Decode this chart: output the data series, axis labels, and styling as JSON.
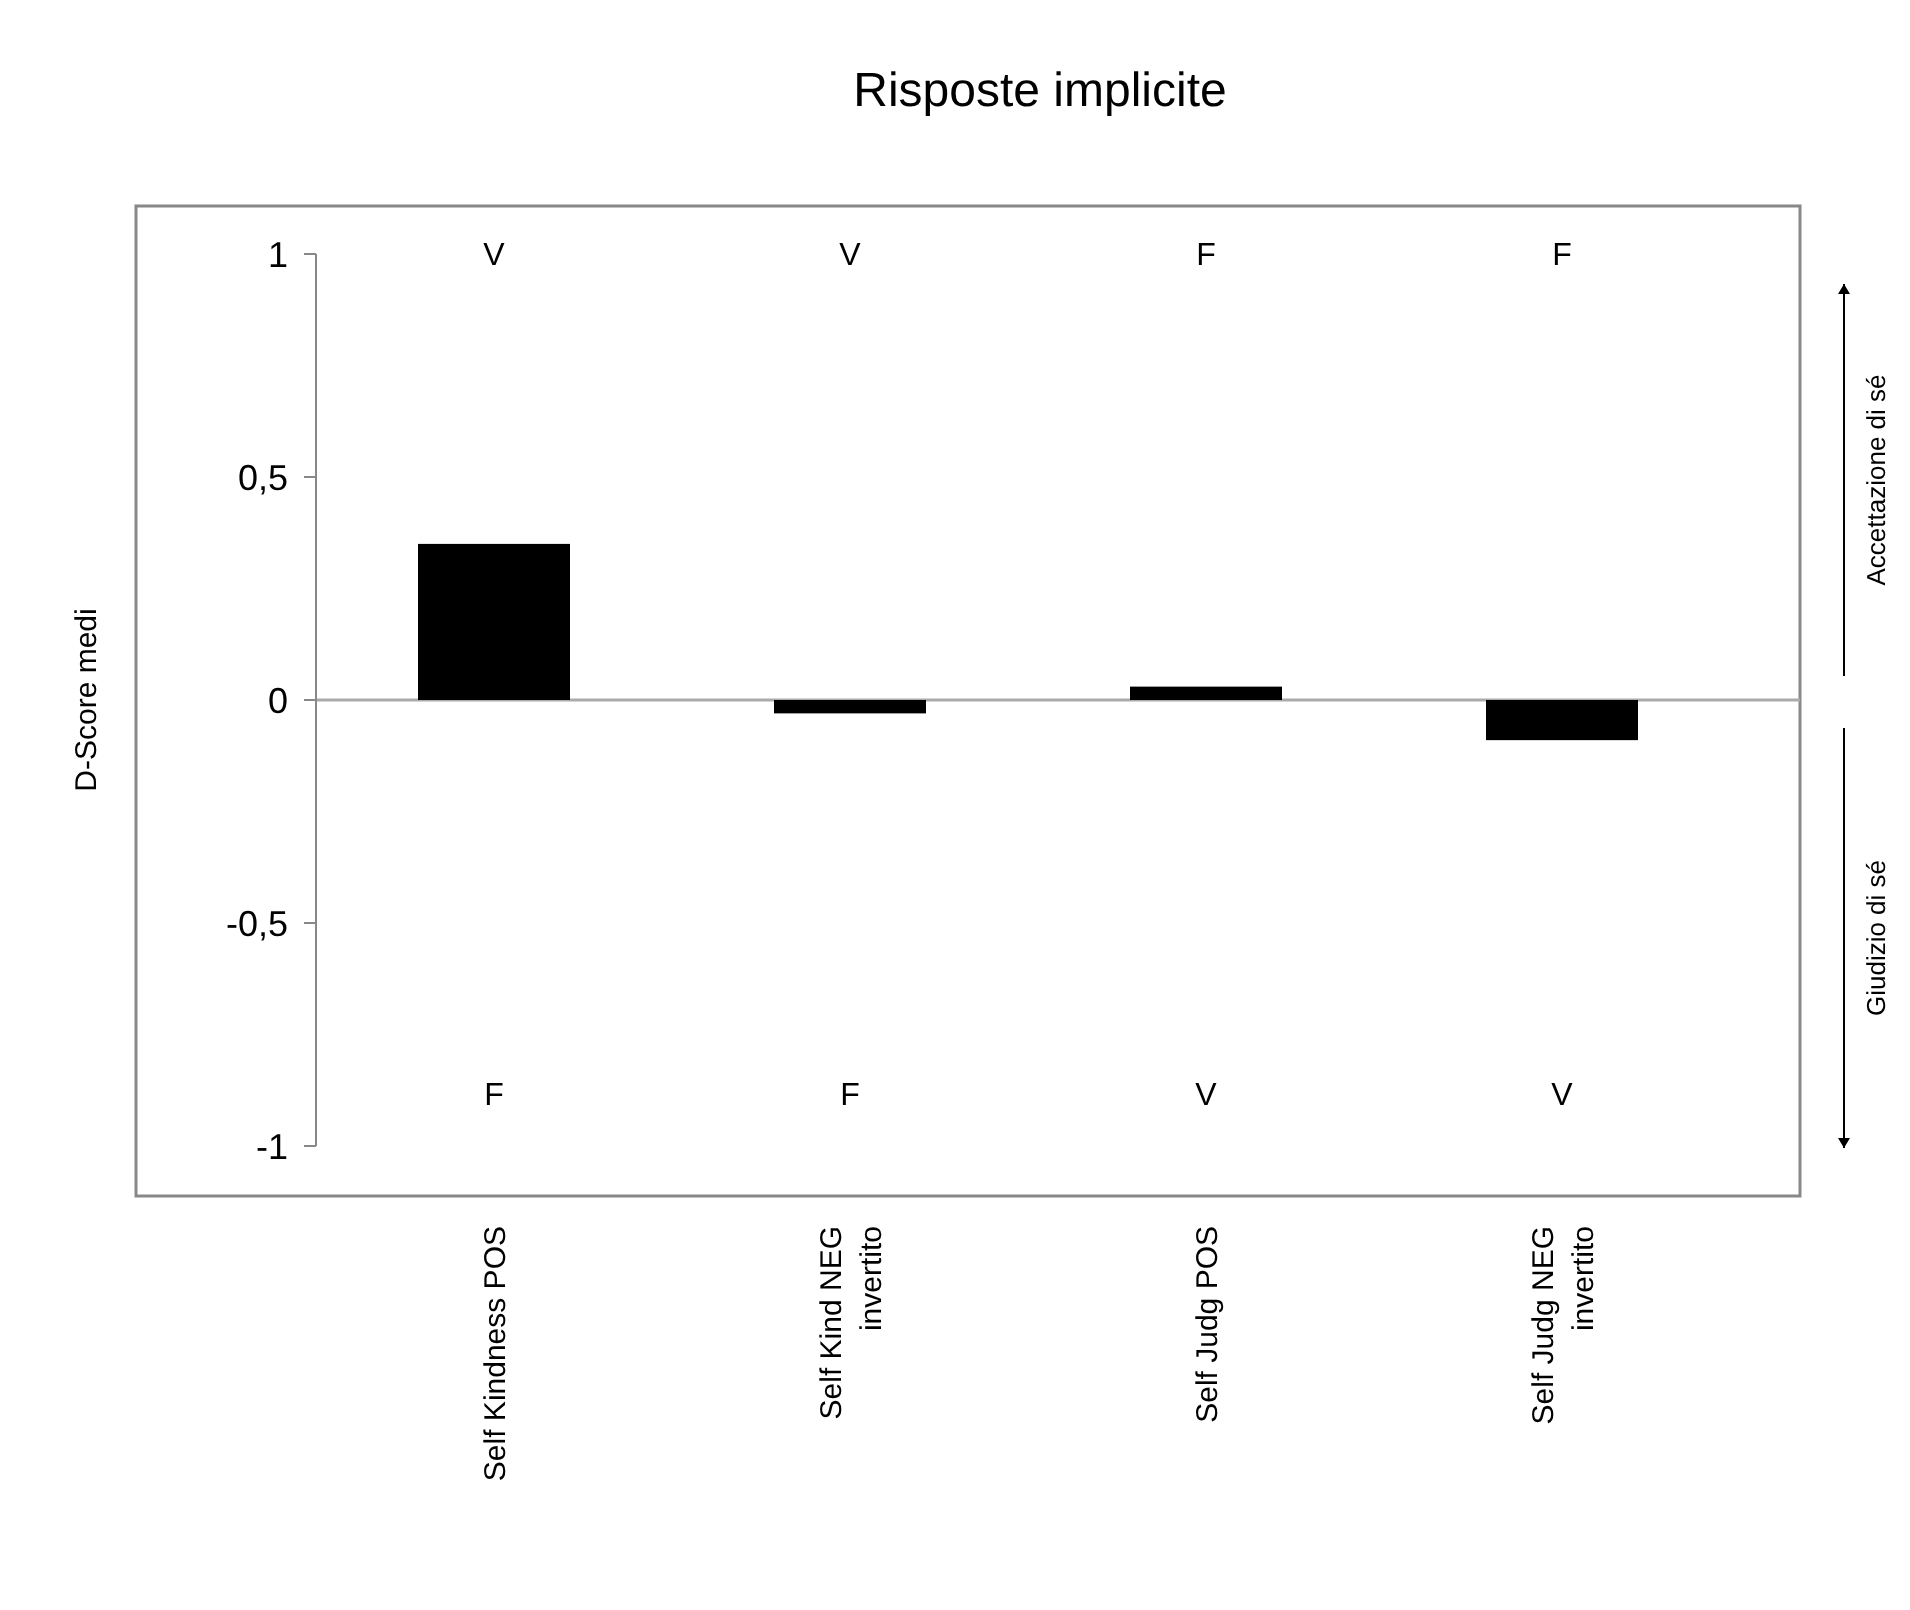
{
  "chart_data": {
    "type": "bar",
    "title": "Risposte implicite",
    "ylabel": "D-Score medi",
    "categories": [
      "Self Kindness POS",
      "Self Kind NEG\ninvertito",
      "Self Judg POS",
      "Self Judg NEG\ninvertito"
    ],
    "values": [
      0.35,
      -0.03,
      0.03,
      -0.09
    ],
    "color": "#000000",
    "ylim": [
      -1,
      1
    ],
    "yticks": [
      {
        "value": -1,
        "label": "-1"
      },
      {
        "value": -0.5,
        "label": "-0,5"
      },
      {
        "value": 0,
        "label": "0"
      },
      {
        "value": 0.5,
        "label": "0,5"
      },
      {
        "value": 1,
        "label": "1"
      }
    ],
    "annotations": [
      "V",
      "V",
      "F",
      "F",
      "F",
      "F",
      "V",
      "V",
      "Accettazione di sé",
      "Giudizio di sé"
    ]
  }
}
